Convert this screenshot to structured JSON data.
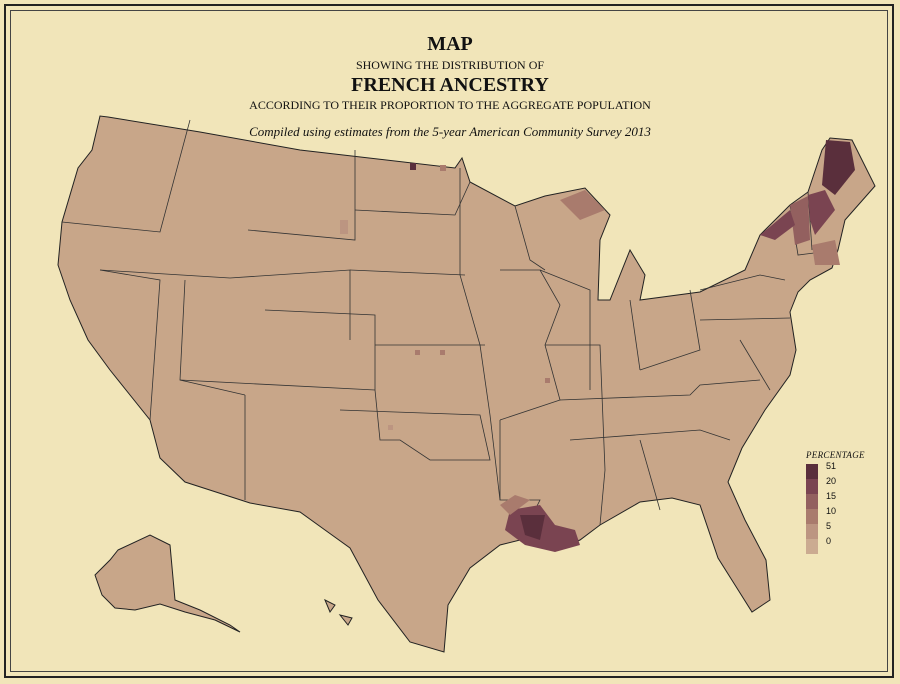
{
  "title": {
    "line1": "MAP",
    "line2": "SHOWING THE DISTRIBUTION OF",
    "line3": "FRENCH ANCESTRY",
    "line4": "ACCORDING TO THEIR PROPORTION TO THE AGGREGATE POPULATION",
    "subtitle": "Compiled using estimates from the 5-year American Community Survey 2013"
  },
  "legend": {
    "title": "PERCENTAGE",
    "items": [
      {
        "label": "51",
        "color": "#5a2f3c"
      },
      {
        "label": "20",
        "color": "#7a4451"
      },
      {
        "label": "15",
        "color": "#93605f"
      },
      {
        "label": "10",
        "color": "#a97b6d"
      },
      {
        "label": "5",
        "color": "#bc9581"
      },
      {
        "label": "0",
        "color": "#cbab91"
      }
    ]
  },
  "colors": {
    "background": "#f1e5b9",
    "land": "#c8a689",
    "border": "#222222"
  }
}
